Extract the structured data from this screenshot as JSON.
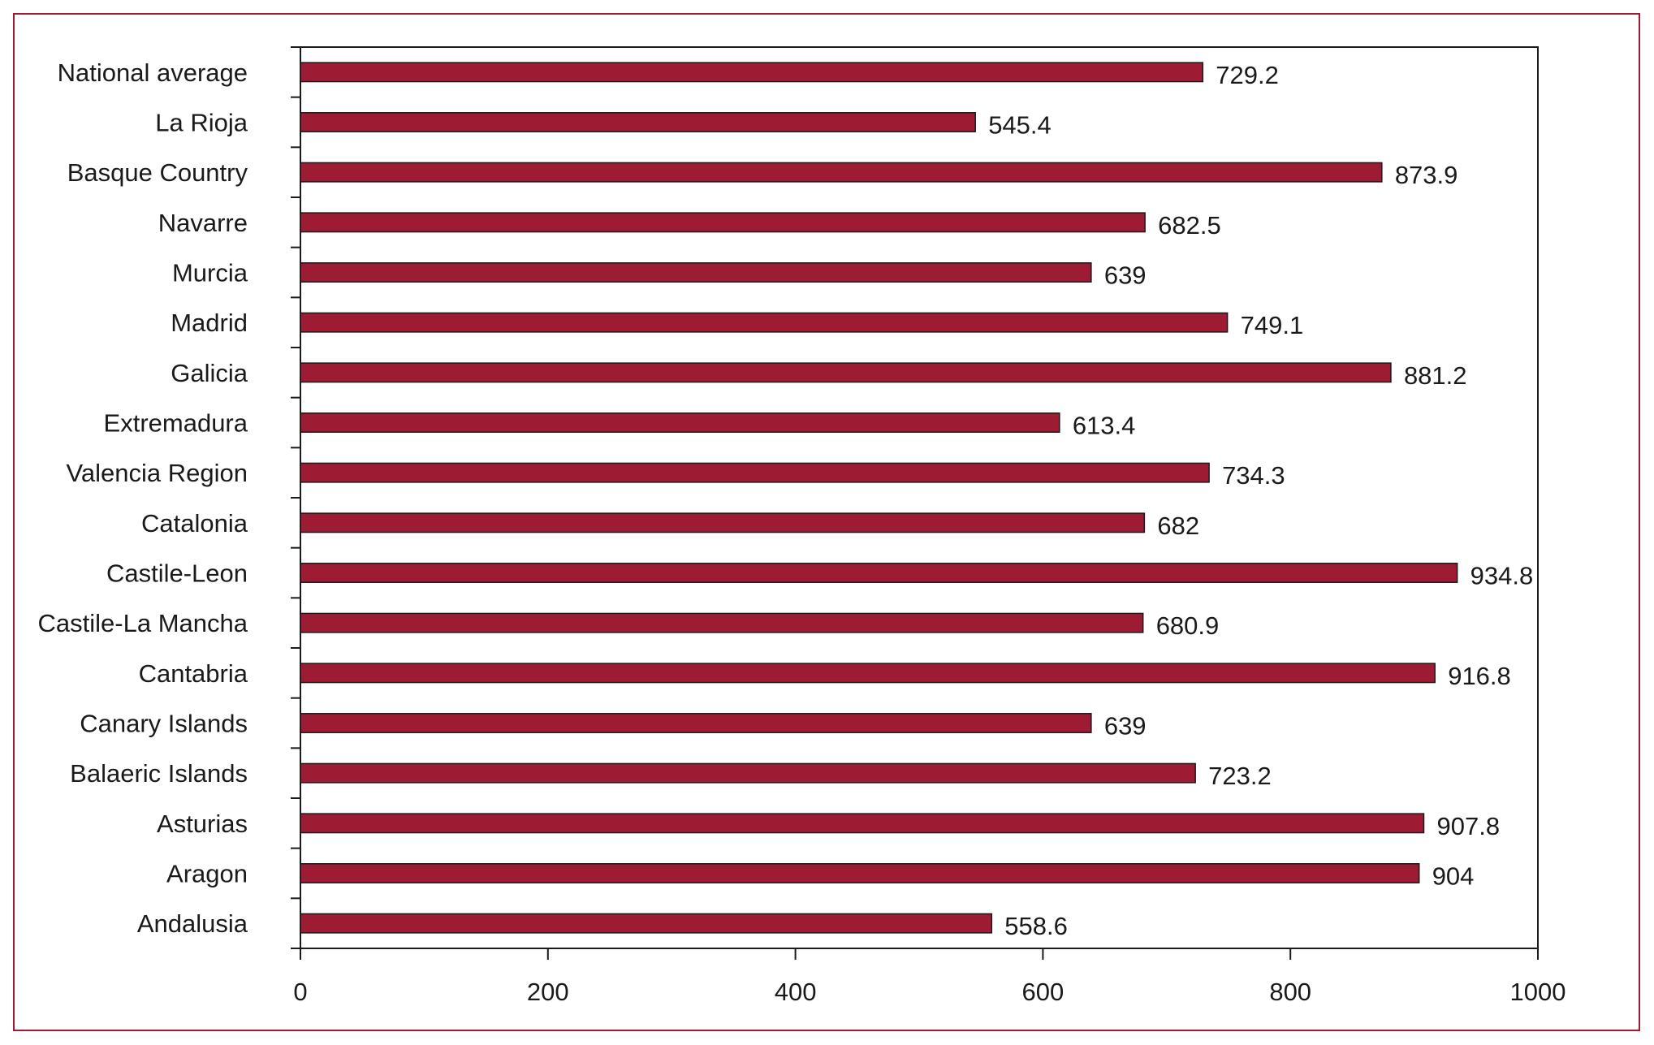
{
  "chart_data": {
    "type": "bar",
    "orientation": "horizontal",
    "categories": [
      "National average",
      "La Rioja",
      "Basque Country",
      "Navarre",
      "Murcia",
      "Madrid",
      "Galicia",
      "Extremadura",
      "Valencia Region",
      "Catalonia",
      "Castile-Leon",
      "Castile-La Mancha",
      "Cantabria",
      "Canary Islands",
      "Balaeric Islands",
      "Asturias",
      "Aragon",
      "Andalusia"
    ],
    "values": [
      729.2,
      545.4,
      873.9,
      682.5,
      639,
      749.1,
      881.2,
      613.4,
      734.3,
      682,
      934.8,
      680.9,
      916.8,
      639,
      723.2,
      907.8,
      904,
      558.6
    ],
    "value_labels": [
      "729.2",
      "545.4",
      "873.9",
      "682.5",
      "639",
      "749.1",
      "881.2",
      "613.4",
      "734.3",
      "682",
      "934.8",
      "680.9",
      "916.8",
      "639",
      "723.2",
      "907.8",
      "904",
      "558.6"
    ],
    "xlim": [
      0,
      1000
    ],
    "x_ticks": [
      0,
      200,
      400,
      600,
      800,
      1000
    ],
    "x_tick_labels": [
      "0",
      "200",
      "400",
      "600",
      "800",
      "1000"
    ],
    "title": "",
    "xlabel": "",
    "ylabel": "",
    "grid": false,
    "colors": {
      "bar": "#9e1c33",
      "bar_edge": "#1a1a1a",
      "frame": "#9e1c33",
      "axis": "#1a1a1a"
    }
  }
}
